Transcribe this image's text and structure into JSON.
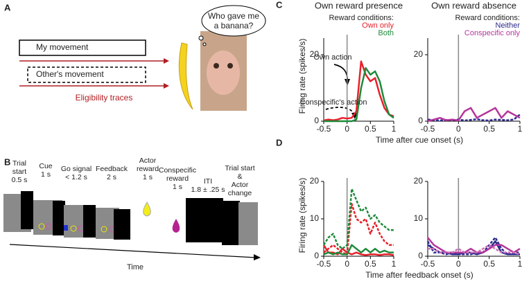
{
  "panel_labels": [
    "A",
    "B",
    "C",
    "D"
  ],
  "panel_a": {
    "my_movement": "My movement",
    "others_movement": "Other's movement",
    "eligibility": "Eligibility traces",
    "speech": [
      "Who gave me",
      "a banana?"
    ]
  },
  "panel_b": {
    "events": [
      {
        "lines": [
          "Trial",
          "start",
          "0.5 s"
        ]
      },
      {
        "lines": [
          "Cue",
          "1 s"
        ]
      },
      {
        "lines": [
          "Go signal",
          "< 1.2 s"
        ]
      },
      {
        "lines": [
          "Feedback",
          "2 s"
        ]
      },
      {
        "lines": [
          "Actor",
          "reward",
          "1 s"
        ]
      },
      {
        "lines": [
          "Conspecific",
          "reward",
          "1 s"
        ]
      },
      {
        "lines": [
          "ITI",
          "1.8 ± .25 s"
        ]
      },
      {
        "lines": [
          "Trial start",
          "&",
          "Actor",
          "change"
        ]
      }
    ],
    "time": "Time"
  },
  "chart_data": [
    {
      "type": "line",
      "title": "Own reward presence",
      "ylabel": "Firing rate  (spikes/s)",
      "xlabel": "Time after cue onset (s)",
      "legend_title": "Reward conditions:",
      "annotations": [
        "Own action",
        "Conspecific's action"
      ],
      "x": [
        -0.5,
        -0.4,
        -0.3,
        -0.2,
        -0.1,
        0,
        0.1,
        0.2,
        0.3,
        0.4,
        0.5,
        0.6,
        0.7,
        0.8,
        0.9,
        1
      ],
      "series": [
        {
          "name": "Own only",
          "color": "#e8202a",
          "dash": false,
          "values": [
            0.2,
            0.5,
            0.3,
            0.5,
            1,
            0.8,
            1,
            3,
            18,
            14,
            12,
            13,
            8,
            4,
            2,
            1.5
          ]
        },
        {
          "name": "Both",
          "color": "#1f8a3a",
          "dash": false,
          "values": [
            0,
            0,
            0,
            0,
            0,
            0,
            0,
            0.5,
            10,
            16,
            14,
            15,
            12,
            6,
            2,
            1
          ]
        }
      ],
      "xlim": [
        -0.5,
        1
      ],
      "ylim": [
        0,
        25
      ],
      "xticks": [
        -0.5,
        0,
        0.5,
        1
      ],
      "yticks": [
        0,
        20
      ]
    },
    {
      "type": "line",
      "title": "Own reward absence",
      "legend_title": "Reward conditions:",
      "x": [
        -0.5,
        -0.4,
        -0.3,
        -0.2,
        -0.1,
        0,
        0.1,
        0.2,
        0.3,
        0.4,
        0.5,
        0.6,
        0.7,
        0.8,
        0.9,
        1
      ],
      "series": [
        {
          "name": "Neither",
          "color": "#2b2a8c",
          "dash": true,
          "values": [
            0.5,
            0.3,
            0.2,
            0.4,
            0.3,
            0.5,
            0.2,
            0.4,
            0.6,
            0.3,
            0.2,
            0.5,
            0.4,
            0.3,
            0.5,
            2
          ]
        },
        {
          "name": "Conspecific only",
          "color": "#b5359c",
          "dash": false,
          "values": [
            0,
            0.5,
            1,
            0.3,
            0.5,
            0.2,
            3,
            4,
            1,
            2,
            3,
            4,
            1,
            3,
            2,
            1
          ]
        }
      ],
      "xlim": [
        -0.5,
        1
      ],
      "ylim": [
        0,
        25
      ],
      "xticks": [
        -0.5,
        0,
        0.5,
        1
      ],
      "yticks": [
        0,
        20
      ]
    },
    {
      "type": "line",
      "ylabel": "Firing rate  (spikes/s)",
      "xlabel": "Time after feedback onset (s)",
      "x": [
        -0.5,
        -0.4,
        -0.3,
        -0.2,
        -0.1,
        0,
        0.1,
        0.2,
        0.3,
        0.4,
        0.5,
        0.6,
        0.7,
        0.8,
        0.9,
        1
      ],
      "series": [
        {
          "color": "#e8202a",
          "dash": false,
          "values": [
            3,
            1,
            1,
            0.5,
            2,
            1,
            0.5,
            1,
            0.5,
            0.3,
            0.5,
            0.5,
            0.3,
            0.5,
            0.5,
            0.3
          ]
        },
        {
          "color": "#e8202a",
          "dash": true,
          "values": [
            1,
            2,
            3,
            2,
            1,
            0.5,
            14,
            10,
            9,
            10,
            6,
            9,
            6,
            4,
            3,
            3
          ]
        },
        {
          "color": "#1f8a3a",
          "dash": false,
          "values": [
            0.5,
            1,
            0.5,
            1,
            0.5,
            0.5,
            3,
            2,
            1,
            2,
            1,
            2,
            1,
            1.5,
            1,
            1
          ]
        },
        {
          "color": "#1f8a3a",
          "dash": true,
          "values": [
            3,
            5,
            6,
            3,
            2,
            3,
            18,
            15,
            12,
            13,
            10,
            11,
            9,
            8,
            7,
            7
          ]
        }
      ],
      "xlim": [
        -0.5,
        1
      ],
      "ylim": [
        0,
        20
      ],
      "xticks": [
        -0.5,
        0,
        0.5,
        1
      ],
      "yticks": [
        0,
        10,
        20
      ]
    },
    {
      "type": "line",
      "x": [
        -0.5,
        -0.4,
        -0.3,
        -0.2,
        -0.1,
        0,
        0.1,
        0.2,
        0.3,
        0.4,
        0.5,
        0.6,
        0.7,
        0.8,
        0.9,
        1
      ],
      "series": [
        {
          "color": "#2b2a8c",
          "dash": false,
          "values": [
            3,
            2,
            1,
            1,
            0.5,
            0.5,
            1,
            1,
            0.5,
            1,
            2,
            4,
            1,
            0.5,
            0.5,
            0.5
          ]
        },
        {
          "color": "#2b2a8c",
          "dash": true,
          "values": [
            4,
            1,
            1,
            0.5,
            1,
            0.5,
            0.5,
            0.5,
            1,
            1,
            3,
            5,
            2,
            0.5,
            1,
            1
          ]
        },
        {
          "color": "#b5359c",
          "dash": false,
          "values": [
            5,
            3,
            2,
            1,
            1,
            1,
            1,
            2,
            1,
            1,
            2,
            3,
            3,
            2,
            1,
            2
          ]
        },
        {
          "color": "#cf6fb8",
          "dash": true,
          "values": [
            2,
            2,
            1,
            1,
            1,
            2,
            1,
            1,
            1,
            2,
            3,
            2,
            1,
            1,
            1,
            0.5
          ]
        }
      ],
      "xlim": [
        -0.5,
        1
      ],
      "ylim": [
        0,
        20
      ],
      "xticks": [
        -0.5,
        0,
        0.5,
        1
      ],
      "yticks": [
        0,
        10,
        20
      ]
    }
  ]
}
